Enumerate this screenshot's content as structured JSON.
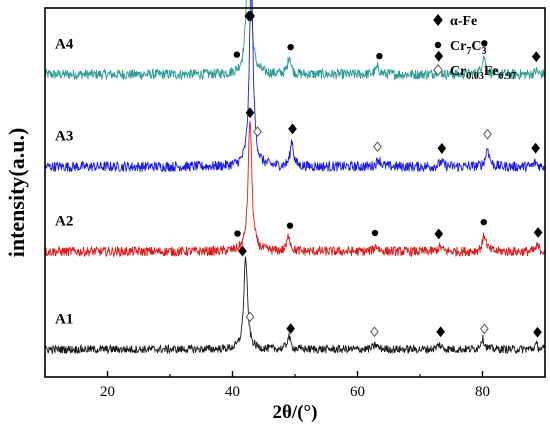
{
  "chart_data": {
    "type": "line",
    "xlabel": "2θ/(°)",
    "ylabel": "intensity(a.u.)",
    "xlim": [
      10,
      90
    ],
    "xticks": [
      20,
      40,
      60,
      80
    ],
    "grid": false,
    "legend_position": "top-right",
    "legend": [
      {
        "marker": "diamond-filled",
        "label": "α-Fe",
        "parts": [
          {
            "t": "α-Fe",
            "sub": false
          }
        ]
      },
      {
        "marker": "dot",
        "label": "Cr7C3",
        "parts": [
          {
            "t": "Cr",
            "sub": false
          },
          {
            "t": "7",
            "sub": true
          },
          {
            "t": "C",
            "sub": false
          },
          {
            "t": "3",
            "sub": true
          }
        ]
      },
      {
        "marker": "diamond-open",
        "label": "Cr0.03Fe0.97",
        "parts": [
          {
            "t": "Cr",
            "sub": false
          },
          {
            "t": "0.03",
            "sub": true
          },
          {
            "t": "Fe",
            "sub": false
          },
          {
            "t": "0.97",
            "sub": true
          }
        ]
      }
    ],
    "series": [
      {
        "name": "A4",
        "color": "#2a9a94",
        "base": 0.82,
        "noise": 0.014,
        "peaks": [
          [
            42.6,
            0.48,
            0.35
          ],
          [
            49.1,
            0.05,
            0.3
          ],
          [
            63.2,
            0.018,
            0.4
          ],
          [
            72.9,
            0.012,
            0.4
          ],
          [
            80.2,
            0.05,
            0.35
          ],
          [
            88.6,
            0.01,
            0.3
          ]
        ],
        "markers": [
          {
            "type": "diamond-filled",
            "x": 42.6
          },
          {
            "type": "dot",
            "x": 40.7
          },
          {
            "type": "dot",
            "x": 49.3
          },
          {
            "type": "dot",
            "x": 63.5
          },
          {
            "type": "diamond-filled",
            "x": 73.0
          },
          {
            "type": "dot",
            "x": 80.3
          },
          {
            "type": "diamond-filled",
            "x": 88.6
          }
        ]
      },
      {
        "name": "A3",
        "color": "#1a1ae6",
        "base": 0.57,
        "noise": 0.014,
        "peaks": [
          [
            43.0,
            0.52,
            0.35
          ],
          [
            49.5,
            0.07,
            0.3
          ],
          [
            63.4,
            0.02,
            0.4
          ],
          [
            73.4,
            0.012,
            0.4
          ],
          [
            80.8,
            0.05,
            0.35
          ],
          [
            88.5,
            0.012,
            0.3
          ]
        ],
        "markers": [
          {
            "type": "diamond-filled",
            "x": 42.9
          },
          {
            "type": "diamond-open",
            "x": 44.0
          },
          {
            "type": "diamond-filled",
            "x": 49.6
          },
          {
            "type": "diamond-open",
            "x": 63.2
          },
          {
            "type": "diamond-filled",
            "x": 73.5
          },
          {
            "type": "diamond-open",
            "x": 80.8
          },
          {
            "type": "diamond-filled",
            "x": 88.5
          }
        ]
      },
      {
        "name": "A2",
        "color": "#e01818",
        "base": 0.34,
        "noise": 0.013,
        "peaks": [
          [
            42.8,
            0.36,
            0.35
          ],
          [
            49.0,
            0.045,
            0.3
          ],
          [
            63.0,
            0.015,
            0.4
          ],
          [
            73.2,
            0.012,
            0.4
          ],
          [
            80.3,
            0.045,
            0.35
          ],
          [
            88.8,
            0.015,
            0.3
          ]
        ],
        "markers": [
          {
            "type": "diamond-filled",
            "x": 42.8
          },
          {
            "type": "dot",
            "x": 40.8
          },
          {
            "type": "dot",
            "x": 49.2
          },
          {
            "type": "dot",
            "x": 62.8
          },
          {
            "type": "diamond-filled",
            "x": 73.0
          },
          {
            "type": "dot",
            "x": 80.2
          },
          {
            "type": "diamond-filled",
            "x": 88.9
          }
        ]
      },
      {
        "name": "A1",
        "color": "#1a1a1a",
        "base": 0.075,
        "noise": 0.011,
        "peaks": [
          [
            42.1,
            0.25,
            0.35
          ],
          [
            49.0,
            0.035,
            0.3
          ],
          [
            62.9,
            0.012,
            0.4
          ],
          [
            73.1,
            0.012,
            0.4
          ],
          [
            80.0,
            0.03,
            0.35
          ],
          [
            88.6,
            0.012,
            0.3
          ]
        ],
        "markers": [
          {
            "type": "diamond-filled",
            "x": 41.6
          },
          {
            "type": "diamond-open",
            "x": 42.8
          },
          {
            "type": "diamond-filled",
            "x": 49.3
          },
          {
            "type": "diamond-open",
            "x": 62.7
          },
          {
            "type": "diamond-filled",
            "x": 73.3
          },
          {
            "type": "diamond-open",
            "x": 80.3
          },
          {
            "type": "diamond-filled",
            "x": 88.8
          }
        ]
      }
    ]
  }
}
